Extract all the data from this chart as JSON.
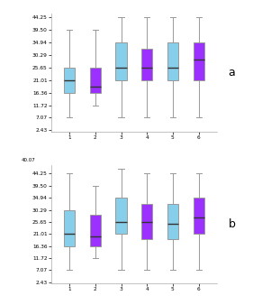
{
  "subplot_a": {
    "boxes": [
      {
        "x": 1,
        "color": "#87CEEB",
        "whislo": 7.07,
        "q1": 16.36,
        "med": 21.01,
        "q3": 25.65,
        "whishi": 39.5
      },
      {
        "x": 2,
        "color": "#9B30FF",
        "whislo": 11.72,
        "q1": 16.36,
        "med": 18.65,
        "q3": 25.65,
        "whishi": 39.5
      },
      {
        "x": 3,
        "color": "#87CEEB",
        "whislo": 7.07,
        "q1": 21.01,
        "med": 25.65,
        "q3": 34.94,
        "whishi": 44.25
      },
      {
        "x": 4,
        "color": "#9B30FF",
        "whislo": 7.07,
        "q1": 21.01,
        "med": 25.65,
        "q3": 32.5,
        "whishi": 44.25
      },
      {
        "x": 5,
        "color": "#87CEEB",
        "whislo": 7.07,
        "q1": 21.01,
        "med": 25.65,
        "q3": 34.94,
        "whishi": 44.25
      },
      {
        "x": 6,
        "color": "#9B30FF",
        "whislo": 7.07,
        "q1": 21.01,
        "med": 28.5,
        "q3": 34.94,
        "whishi": 44.25
      }
    ],
    "yticks": [
      2.43,
      7.07,
      11.72,
      16.36,
      21.01,
      25.65,
      30.29,
      34.94,
      39.5,
      44.25
    ],
    "ytick_labels": [
      "2.43",
      "7.07",
      "11.72",
      "16.36",
      "21.01",
      "25.65",
      "30.29",
      "34.94",
      "39.50",
      "44.25"
    ],
    "ylim": [
      2.0,
      45.5
    ],
    "label": "a"
  },
  "subplot_b": {
    "boxes": [
      {
        "x": 1,
        "color": "#87CEEB",
        "whislo": 7.07,
        "q1": 16.36,
        "med": 21.01,
        "q3": 30.29,
        "whishi": 44.25
      },
      {
        "x": 2,
        "color": "#9B30FF",
        "whislo": 11.72,
        "q1": 16.36,
        "med": 20.0,
        "q3": 28.5,
        "whishi": 39.5
      },
      {
        "x": 3,
        "color": "#87CEEB",
        "whislo": 7.07,
        "q1": 21.01,
        "med": 25.65,
        "q3": 34.94,
        "whishi": 46.0
      },
      {
        "x": 4,
        "color": "#9B30FF",
        "whislo": 7.07,
        "q1": 19.0,
        "med": 25.65,
        "q3": 32.5,
        "whishi": 44.25
      },
      {
        "x": 5,
        "color": "#87CEEB",
        "whislo": 7.07,
        "q1": 19.0,
        "med": 25.0,
        "q3": 32.5,
        "whishi": 44.25
      },
      {
        "x": 6,
        "color": "#9B30FF",
        "whislo": 7.07,
        "q1": 21.01,
        "med": 27.5,
        "q3": 34.94,
        "whishi": 44.25
      }
    ],
    "yticks": [
      2.43,
      7.07,
      11.72,
      16.36,
      21.01,
      25.65,
      30.29,
      34.94,
      39.5,
      44.25
    ],
    "ytick_labels": [
      "2.43",
      "7.07",
      "11.72",
      "16.36",
      "21.01",
      "25.65",
      "30.29",
      "34.94",
      "39.50",
      "44.25"
    ],
    "ylim": [
      2.0,
      47.5
    ],
    "extra_top_label": "40.07",
    "label": "b"
  },
  "xlim": [
    0.3,
    6.7
  ],
  "xticks": [
    1,
    2,
    3,
    4,
    5,
    6
  ],
  "box_width": 0.42,
  "linecolor": "#999999",
  "mediancolor": "#333333",
  "bg_color": "#ffffff"
}
